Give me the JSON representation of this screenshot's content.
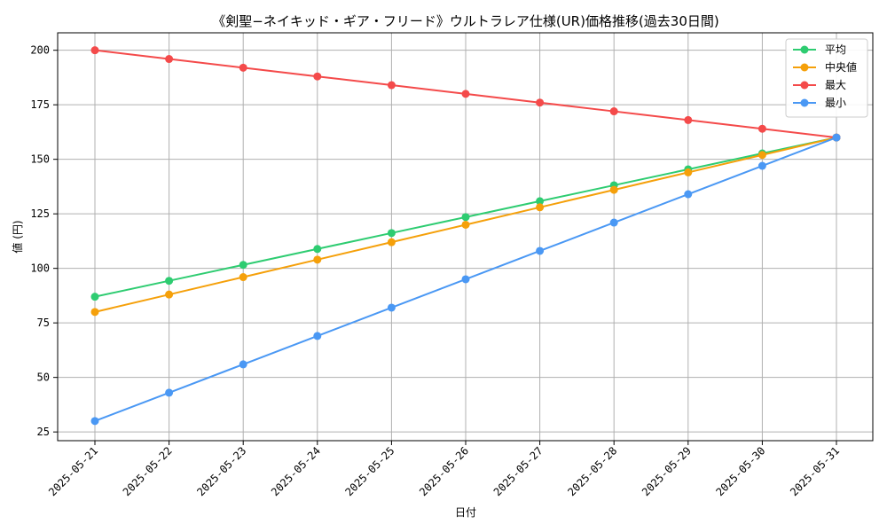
{
  "chart_data": {
    "type": "line",
    "title": "《剣聖−ネイキッド・ギア・フリード》ウルトラレア仕様(UR)価格推移(過去30日間)",
    "xlabel": "日付",
    "ylabel": "値 (円)",
    "categories": [
      "2025-05-21",
      "2025-05-22",
      "2025-05-23",
      "2025-05-24",
      "2025-05-25",
      "2025-05-26",
      "2025-05-27",
      "2025-05-28",
      "2025-05-29",
      "2025-05-30",
      "2025-05-31"
    ],
    "ylim": [
      21,
      208
    ],
    "yticks": [
      25,
      50,
      75,
      100,
      125,
      150,
      175,
      200
    ],
    "grid": true,
    "legend_position": "top-right",
    "series": [
      {
        "name": "平均",
        "color": "#2ecc71",
        "values": [
          87,
          94.3,
          101.6,
          108.9,
          116.2,
          123.5,
          130.8,
          138.1,
          145.4,
          152.7,
          160
        ]
      },
      {
        "name": "中央値",
        "color": "#f5a00a",
        "values": [
          80,
          88,
          96,
          104,
          112,
          120,
          128,
          136,
          144,
          152,
          160
        ]
      },
      {
        "name": "最大",
        "color": "#f44a4a",
        "values": [
          200,
          196,
          192,
          188,
          184,
          180,
          176,
          172,
          168,
          164,
          160
        ]
      },
      {
        "name": "最小",
        "color": "#4a98f4",
        "values": [
          30,
          43,
          56,
          69,
          82,
          95,
          108,
          121,
          134,
          147,
          160
        ]
      }
    ]
  }
}
